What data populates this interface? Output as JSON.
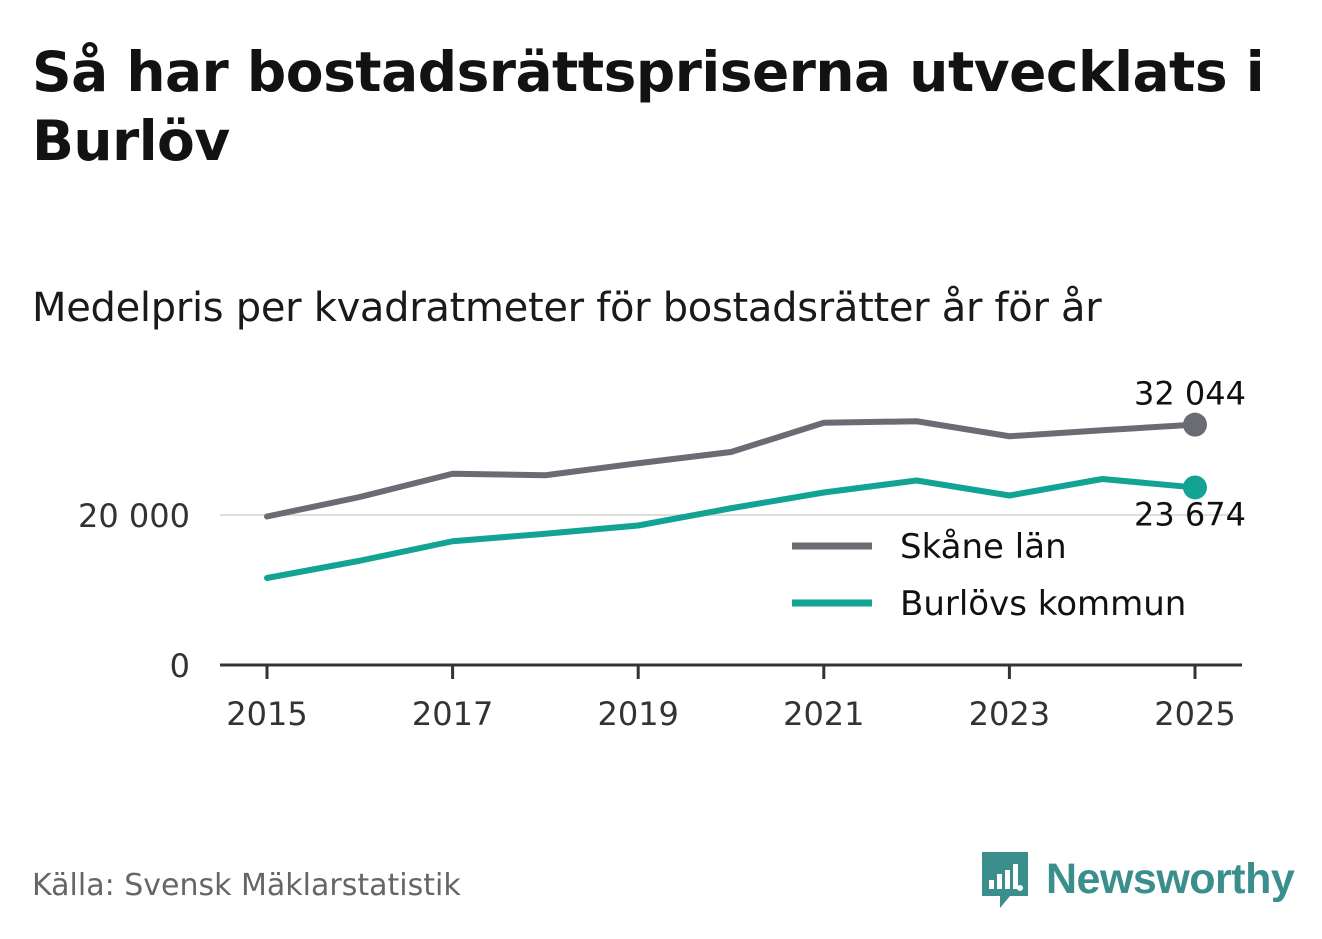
{
  "title": "Så har bostadsrättspriserna utvecklats i Burlöv",
  "subtitle": "Medelpris per kvadratmeter för bostadsrätter år för år",
  "source": "Källa: Svensk Mäklarstatistik",
  "brand": {
    "name": "Newsworthy",
    "color": "#3a8f8c"
  },
  "chart_data": {
    "type": "line",
    "title": "Medelpris per kvadratmeter för bostadsrätter år för år",
    "xlabel": "",
    "ylabel": "",
    "x": [
      2015,
      2016,
      2017,
      2018,
      2019,
      2020,
      2021,
      2022,
      2023,
      2024,
      2025
    ],
    "xticks": [
      "2015",
      "2017",
      "2019",
      "2021",
      "2023",
      "2025"
    ],
    "xtick_values": [
      2015,
      2017,
      2019,
      2021,
      2023,
      2025
    ],
    "yticks": [
      "0",
      "20 000"
    ],
    "ytick_values": [
      0,
      20000
    ],
    "ylim": [
      0,
      38000
    ],
    "grid": true,
    "legend_position": "center-right",
    "series": [
      {
        "name": "Skåne län",
        "color": "#6b6b73",
        "values": [
          19800,
          22400,
          25500,
          25300,
          26900,
          28400,
          32300,
          32500,
          30500,
          31300,
          32044
        ],
        "end_label": "32 044"
      },
      {
        "name": "Burlövs kommun",
        "color": "#12a394",
        "values": [
          11600,
          13900,
          16500,
          17500,
          18600,
          20900,
          23000,
          24600,
          22600,
          24800,
          23674
        ],
        "end_label": "23 674"
      }
    ]
  }
}
